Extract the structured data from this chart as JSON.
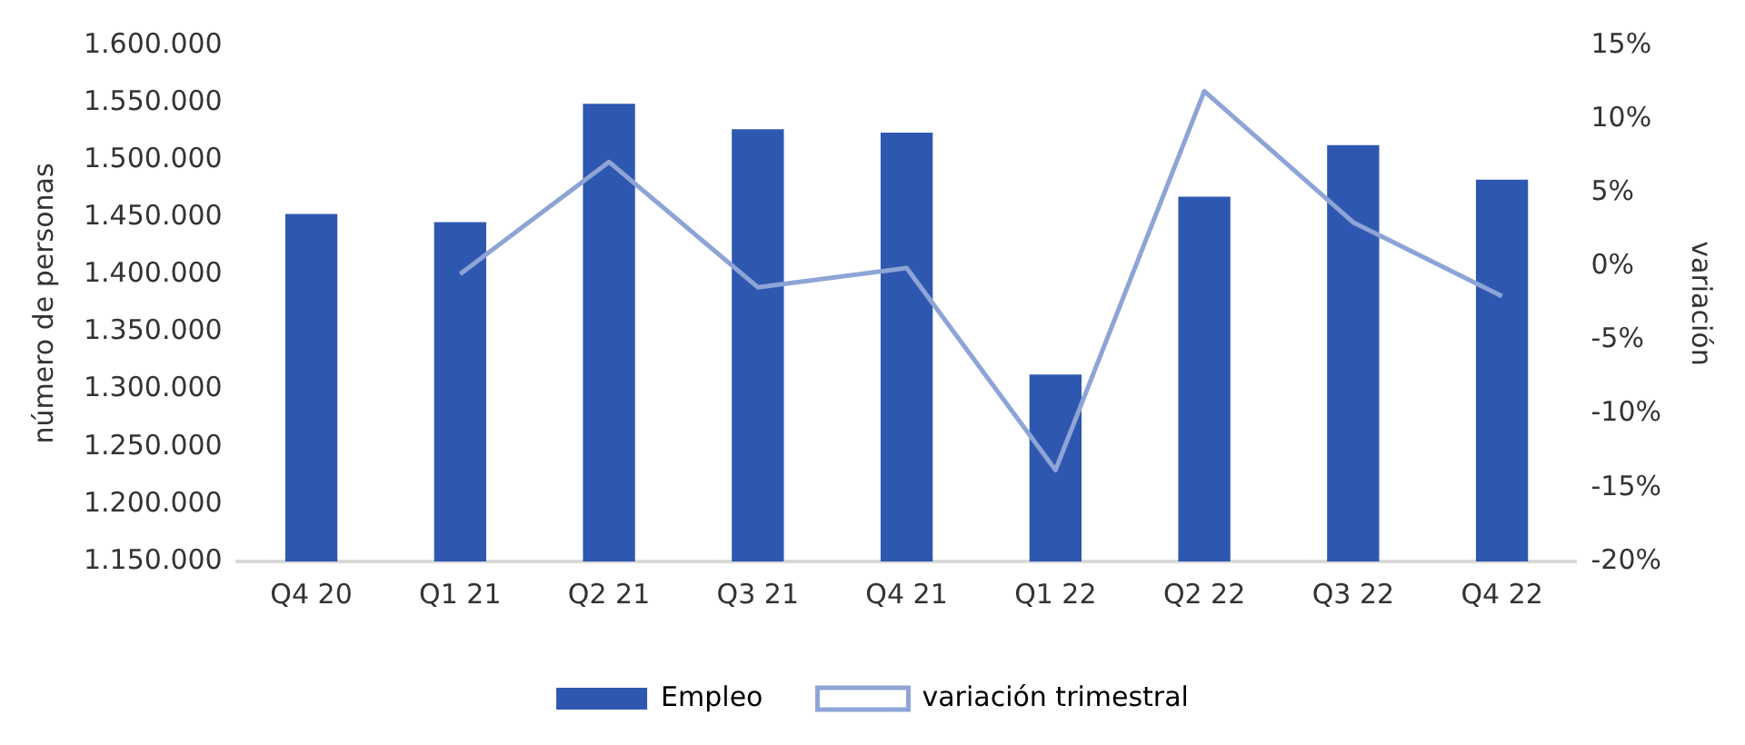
{
  "chart_data": {
    "type": "bar",
    "ylabel": "número de personas",
    "y2label": "variación",
    "categories": [
      "Q4 20",
      "Q1 21",
      "Q2 21",
      "Q3 21",
      "Q4 21",
      "Q1 22",
      "Q2 22",
      "Q3 22",
      "Q4 22"
    ],
    "series": [
      {
        "name": "Empleo",
        "color": "#2e58b0",
        "values": [
          1453000,
          1446000,
          1549000,
          1527000,
          1524000,
          1313000,
          1468000,
          1513000,
          1483000
        ]
      },
      {
        "name": "variación trimestral",
        "type": "line",
        "axis": "y2",
        "color": "#8ea4d6",
        "values": [
          null,
          -0.5,
          7.1,
          -1.4,
          -0.1,
          -13.8,
          11.9,
          3.0,
          -2.0
        ]
      }
    ],
    "ylim": [
      1150000,
      1600000
    ],
    "yticks": [
      {
        "value": 1150000,
        "label": "1.150.000"
      },
      {
        "value": 1200000,
        "label": "1.200.000"
      },
      {
        "value": 1250000,
        "label": "1.250.000"
      },
      {
        "value": 1300000,
        "label": "1.300.000"
      },
      {
        "value": 1350000,
        "label": "1.350.000"
      },
      {
        "value": 1400000,
        "label": "1.400.000"
      },
      {
        "value": 1450000,
        "label": "1.450.000"
      },
      {
        "value": 1500000,
        "label": "1.500.000"
      },
      {
        "value": 1550000,
        "label": "1.550.000"
      },
      {
        "value": 1600000,
        "label": "1.600.000"
      }
    ],
    "y2lim": [
      -20,
      15
    ],
    "y2ticks": [
      {
        "value": -20,
        "label": "-20%"
      },
      {
        "value": -15,
        "label": "-15%"
      },
      {
        "value": -10,
        "label": "-10%"
      },
      {
        "value": -5,
        "label": "-5%"
      },
      {
        "value": 0,
        "label": "0%"
      },
      {
        "value": 5,
        "label": "5%"
      },
      {
        "value": 10,
        "label": "10%"
      },
      {
        "value": 15,
        "label": "15%"
      }
    ],
    "grid": false,
    "legend": "bottom",
    "marker": "none",
    "line_style": "solid"
  }
}
